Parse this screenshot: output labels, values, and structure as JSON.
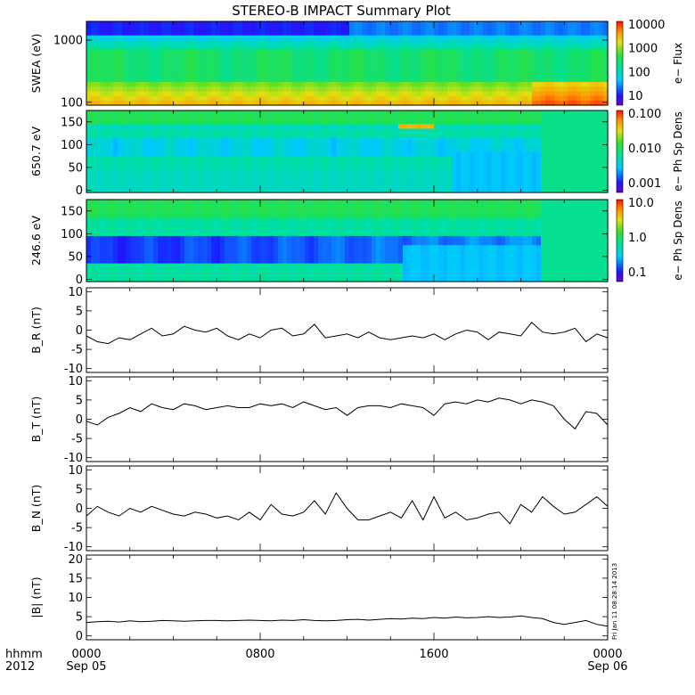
{
  "title": "STEREO-B IMPACT Summary Plot",
  "footer": {
    "format_line1": "hhmm",
    "format_line2": "2012",
    "ticks": [
      {
        "hhmm": "0000",
        "date": "Sep 05"
      },
      {
        "hhmm": "0800",
        "date": ""
      },
      {
        "hhmm": "1600",
        "date": ""
      },
      {
        "hhmm": "0000",
        "date": "Sep 06"
      }
    ]
  },
  "side_stamp": "Fri Jan 11 08:28:14 2013",
  "colors": {
    "trace": "#000000",
    "axes": "#000000"
  },
  "chart_data": [
    {
      "type": "heatmap",
      "ylabel": "SWEA (eV)",
      "ytick_labels": [
        "1000",
        "100"
      ],
      "colorbar_label": "e− Flux",
      "colorbar_ticks": [
        "10000",
        "1000",
        "100",
        "10"
      ],
      "log_scale": true,
      "ylim": [
        90,
        2000
      ],
      "clim": [
        10,
        10000
      ]
    },
    {
      "type": "heatmap",
      "ylabel": "650.7 eV",
      "ytick_labels": [
        "150",
        "100",
        "50",
        "0"
      ],
      "colorbar_label": "e− Ph Sp Dens",
      "colorbar_ticks": [
        "0.100",
        "0.010",
        "0.001"
      ],
      "ylim": [
        -5,
        175
      ],
      "clim": [
        0.001,
        0.1
      ]
    },
    {
      "type": "heatmap",
      "ylabel": "246.6 eV",
      "ytick_labels": [
        "150",
        "100",
        "50",
        "0"
      ],
      "colorbar_label": "e− Ph Sp Dens",
      "colorbar_ticks": [
        "10.0",
        "1.0",
        "0.1"
      ],
      "ylim": [
        -5,
        175
      ],
      "clim": [
        0.1,
        10
      ]
    },
    {
      "type": "line",
      "ylabel": "B_R (nT)",
      "ytick_labels": [
        "10",
        "5",
        "0",
        "-5",
        "-10"
      ],
      "ylim": [
        -11,
        11
      ],
      "x": [
        0,
        0.5,
        1,
        1.5,
        2,
        2.5,
        3,
        3.5,
        4,
        4.5,
        5,
        5.5,
        6,
        6.5,
        7,
        7.5,
        8,
        8.5,
        9,
        9.5,
        10,
        10.5,
        11,
        11.5,
        12,
        12.5,
        13,
        13.5,
        14,
        14.5,
        15,
        15.5,
        16,
        16.5,
        17,
        17.5,
        18,
        18.5,
        19,
        19.5,
        20,
        20.5,
        21,
        21.5,
        22,
        22.5,
        23,
        23.5,
        24
      ],
      "values": [
        -1.5,
        -3,
        -3.5,
        -2,
        -2.5,
        -1,
        0.5,
        -1.5,
        -1,
        1,
        0,
        -0.5,
        0.5,
        -1.5,
        -2.5,
        -1,
        -2,
        0,
        0.5,
        -1.5,
        -1,
        1.5,
        -2,
        -1.5,
        -1,
        -2,
        -0.5,
        -2,
        -2.5,
        -2,
        -1.5,
        -2,
        -1,
        -2.5,
        -1,
        0,
        -0.5,
        -2.5,
        -0.5,
        -1,
        -1.5,
        2,
        -0.5,
        -1,
        -0.5,
        0.5,
        -3,
        -1,
        -2
      ]
    },
    {
      "type": "line",
      "ylabel": "B_T (nT)",
      "ytick_labels": [
        "10",
        "5",
        "0",
        "-5",
        "-10"
      ],
      "ylim": [
        -11,
        11
      ],
      "x": [
        0,
        0.5,
        1,
        1.5,
        2,
        2.5,
        3,
        3.5,
        4,
        4.5,
        5,
        5.5,
        6,
        6.5,
        7,
        7.5,
        8,
        8.5,
        9,
        9.5,
        10,
        10.5,
        11,
        11.5,
        12,
        12.5,
        13,
        13.5,
        14,
        14.5,
        15,
        15.5,
        16,
        16.5,
        17,
        17.5,
        18,
        18.5,
        19,
        19.5,
        20,
        20.5,
        21,
        21.5,
        22,
        22.5,
        23,
        23.5,
        24
      ],
      "values": [
        -0.5,
        -1.5,
        0.5,
        1.5,
        3,
        2,
        4,
        3,
        2.5,
        4,
        3.5,
        2.5,
        3,
        3.5,
        3,
        3,
        4,
        3.5,
        4,
        3,
        4.5,
        3.5,
        2.5,
        3,
        1,
        3,
        3.5,
        3.5,
        3,
        4,
        3.5,
        3,
        1,
        4,
        4.5,
        4,
        5,
        4.5,
        5.5,
        5,
        4,
        5,
        4.5,
        3.5,
        0,
        -2.5,
        2,
        1.5,
        -1.5
      ]
    },
    {
      "type": "line",
      "ylabel": "B_N (nT)",
      "ytick_labels": [
        "10",
        "5",
        "0",
        "-5",
        "-10"
      ],
      "ylim": [
        -11,
        11
      ],
      "x": [
        0,
        0.5,
        1,
        1.5,
        2,
        2.5,
        3,
        3.5,
        4,
        4.5,
        5,
        5.5,
        6,
        6.5,
        7,
        7.5,
        8,
        8.5,
        9,
        9.5,
        10,
        10.5,
        11,
        11.5,
        12,
        12.5,
        13,
        13.5,
        14,
        14.5,
        15,
        15.5,
        16,
        16.5,
        17,
        17.5,
        18,
        18.5,
        19,
        19.5,
        20,
        20.5,
        21,
        21.5,
        22,
        22.5,
        23,
        23.5,
        24
      ],
      "values": [
        -2,
        0.5,
        -1,
        -2,
        0,
        -1,
        0.5,
        -0.5,
        -1.5,
        -2,
        -1,
        -1.5,
        -2.5,
        -2,
        -3,
        -1,
        -3,
        1,
        -1.5,
        -2,
        -1,
        2,
        -1.5,
        4,
        0,
        -3,
        -3,
        -2,
        -1,
        -2.5,
        2,
        -3,
        3,
        -2.5,
        -1,
        -3,
        -2.5,
        -1.5,
        -1,
        -4,
        1,
        -1,
        3,
        0.5,
        -1.5,
        -1,
        1,
        3,
        0.5
      ]
    },
    {
      "type": "line",
      "ylabel": "|B| (nT)",
      "ytick_labels": [
        "20",
        "15",
        "10",
        "5",
        "0"
      ],
      "ylim": [
        -1,
        21
      ],
      "x": [
        0,
        0.5,
        1,
        1.5,
        2,
        2.5,
        3,
        3.5,
        4,
        4.5,
        5,
        5.5,
        6,
        6.5,
        7,
        7.5,
        8,
        8.5,
        9,
        9.5,
        10,
        10.5,
        11,
        11.5,
        12,
        12.5,
        13,
        13.5,
        14,
        14.5,
        15,
        15.5,
        16,
        16.5,
        17,
        17.5,
        18,
        18.5,
        19,
        19.5,
        20,
        20.5,
        21,
        21.5,
        22,
        22.5,
        23,
        23.5,
        24
      ],
      "values": [
        3.5,
        3.7,
        3.8,
        3.6,
        3.9,
        3.7,
        3.8,
        4,
        3.9,
        3.8,
        3.9,
        4,
        4,
        3.9,
        4,
        4.1,
        4,
        3.9,
        4.1,
        4,
        4.2,
        4,
        3.9,
        4,
        4.2,
        4.3,
        4.1,
        4.3,
        4.5,
        4.4,
        4.6,
        4.5,
        4.8,
        4.6,
        4.9,
        4.7,
        4.8,
        5,
        4.8,
        4.9,
        5.2,
        4.8,
        4.5,
        3.5,
        3,
        3.5,
        4,
        3,
        2.5
      ]
    }
  ]
}
